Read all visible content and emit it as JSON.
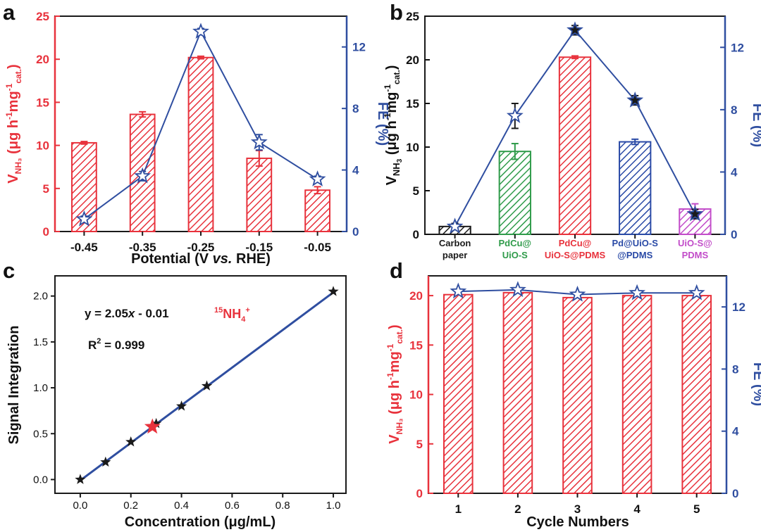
{
  "colors": {
    "red": "#e8323c",
    "blue": "#2f4ea0",
    "green": "#2f9b4a",
    "navy": "#2a4aa6",
    "magenta": "#c24cc9",
    "black": "#1a1a1a"
  },
  "chart_data": [
    {
      "panel": "a",
      "type": "bar",
      "categories": [
        "-0.45",
        "-0.35",
        "-0.25",
        "-0.15",
        "-0.05"
      ],
      "xlabel_main": "Potential (V ",
      "xlabel_italic": "vs.",
      "xlabel_tail": " RHE)",
      "ylabel_left": {
        "main": "V",
        "sub": "NH₃",
        "tail": " (μg h",
        "sup1": "-1",
        "mid": "mg",
        "sup2": "-1",
        "sub2": "cat.",
        "end": ")"
      },
      "ylabel_right": "FE (%)",
      "ylim_left": [
        0,
        25
      ],
      "yticks_left": [
        "0",
        "5",
        "10",
        "15",
        "20",
        "25"
      ],
      "ylim_right": [
        0,
        14
      ],
      "yticks_right": [
        "0",
        "4",
        "8",
        "12"
      ],
      "series": [
        {
          "axis": "left",
          "kind": "bar",
          "values": [
            10.3,
            13.6,
            20.2,
            8.5,
            4.8
          ],
          "errors": [
            0.15,
            0.3,
            0.15,
            0.9,
            0.4
          ],
          "color": "#e8323c"
        },
        {
          "axis": "right",
          "kind": "line",
          "values": [
            0.8,
            3.6,
            13.0,
            5.8,
            3.4
          ],
          "errors": [
            0.2,
            0.3,
            0.2,
            0.5,
            0.2
          ],
          "color": "#2f4ea0"
        }
      ]
    },
    {
      "panel": "b",
      "type": "bar",
      "categories": [
        {
          "line1": "Carbon",
          "line2": "paper",
          "color": "#1a1a1a"
        },
        {
          "line1": "PdCu@",
          "line2": "UiO-S",
          "color": "#2f9b4a"
        },
        {
          "line1": "PdCu@",
          "line2": "UiO-S@PDMS",
          "color": "#e8323c"
        },
        {
          "line1": "Pd@UiO-S",
          "line2": "@PDMS",
          "color": "#2a4aa6"
        },
        {
          "line1": "UiO-S@",
          "line2": "PDMS",
          "color": "#c24cc9"
        }
      ],
      "ylabel_left": {
        "main": "V",
        "sub": "NH",
        "sub3": "3",
        "tail": " (μg h",
        "sup1": "-1",
        "mid": "mg",
        "sup2": "-1",
        "sub2": "cat.",
        "end": ")"
      },
      "ylabel_right": "FE (%)",
      "ylim_left": [
        0,
        25
      ],
      "yticks_left": [
        "0",
        "5",
        "10",
        "15",
        "20",
        "25"
      ],
      "ylim_right": [
        0,
        14
      ],
      "yticks_right": [
        "0",
        "4",
        "8",
        "12"
      ],
      "series": [
        {
          "axis": "left",
          "kind": "bar",
          "values": [
            0.9,
            9.5,
            20.3,
            10.6,
            2.9
          ],
          "errors": [
            0.3,
            0.9,
            0.15,
            0.3,
            0.6
          ]
        },
        {
          "axis": "right",
          "kind": "line",
          "values": [
            0.5,
            7.6,
            13.1,
            8.6,
            1.3
          ],
          "errors": [
            0.2,
            0.8,
            0.3,
            0.3,
            0.3
          ],
          "color": "#2f4ea0"
        }
      ]
    },
    {
      "panel": "c",
      "type": "scatter",
      "xlabel": "Concentration (μg/mL)",
      "ylabel": "Signal Integration",
      "xlim": [
        -0.1,
        1.05
      ],
      "ylim": [
        -0.15,
        2.22
      ],
      "xticks": [
        "0.0",
        "0.2",
        "0.4",
        "0.6",
        "0.8",
        "1.0"
      ],
      "yticks": [
        "0.0",
        "0.5",
        "1.0",
        "1.5",
        "2.0"
      ],
      "equation": {
        "prefix": "y = 2.05",
        "var": "x",
        "suffix": " - 0.01"
      },
      "r2": {
        "label": "R",
        "sup": "2",
        "value": " = 0.999"
      },
      "species": {
        "sup_mass": "15",
        "main": "NH",
        "sub": "4",
        "sup_charge": "+"
      },
      "points": [
        {
          "x": 0.0,
          "y": 0.0
        },
        {
          "x": 0.1,
          "y": 0.19
        },
        {
          "x": 0.2,
          "y": 0.41
        },
        {
          "x": 0.3,
          "y": 0.61
        },
        {
          "x": 0.4,
          "y": 0.8
        },
        {
          "x": 0.5,
          "y": 1.02
        },
        {
          "x": 1.0,
          "y": 2.05
        }
      ],
      "highlight": {
        "x": 0.285,
        "y": 0.575,
        "color": "#e8323c"
      },
      "fit": {
        "slope": 2.05,
        "intercept": -0.01,
        "color": "#2f4ea0"
      }
    },
    {
      "panel": "d",
      "type": "bar",
      "categories": [
        "1",
        "2",
        "3",
        "4",
        "5"
      ],
      "xlabel": "Cycle Numbers",
      "ylabel_left": {
        "main": "V",
        "sub": "NH₃",
        "tail": " (μg h",
        "sup1": "-1",
        "mid": "mg",
        "sup2": "-1",
        "sub2": "cat.",
        "end": ")"
      },
      "ylabel_right": "FE (%)",
      "ylim_left": [
        0,
        22
      ],
      "yticks_left": [
        "0",
        "5",
        "10",
        "15",
        "20"
      ],
      "ylim_right": [
        0,
        14
      ],
      "yticks_right": [
        "0",
        "4",
        "8",
        "12"
      ],
      "series": [
        {
          "axis": "left",
          "kind": "bar",
          "values": [
            20.1,
            20.3,
            19.8,
            20.0,
            20.0
          ],
          "color": "#e8323c"
        },
        {
          "axis": "right",
          "kind": "line",
          "values": [
            13.0,
            13.1,
            12.8,
            12.9,
            12.9
          ],
          "color": "#2f4ea0"
        }
      ]
    }
  ],
  "panel_labels": [
    "a",
    "b",
    "c",
    "d"
  ]
}
